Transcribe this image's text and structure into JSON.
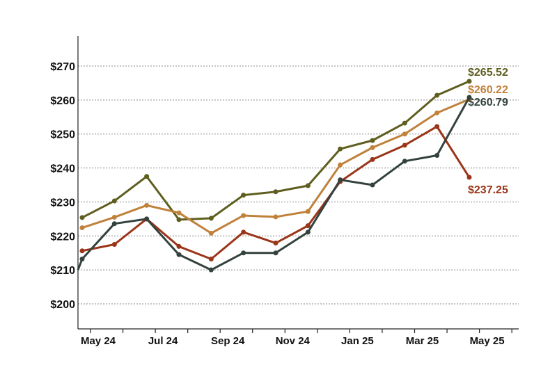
{
  "chart_data": {
    "type": "line",
    "title": "",
    "xlabel": "",
    "ylabel": "",
    "ylim": [
      194,
      276
    ],
    "y_ticks": [
      200,
      210,
      220,
      230,
      240,
      250,
      260,
      270
    ],
    "y_tick_labels": [
      "$200",
      "$210",
      "$220",
      "$230",
      "$240",
      "$250",
      "$260",
      "$270"
    ],
    "x_tick_labels": [
      "May 24",
      "",
      "Jul 24",
      "",
      "Sep 24",
      "",
      "Nov 24",
      "",
      "Jan 25",
      "",
      "Mar 25",
      "",
      "May 25",
      ""
    ],
    "grid": "horizontal-dotted",
    "series": [
      {
        "id": "olive",
        "color": "#5e5e1f",
        "end_label": "$265.52",
        "values": [
          225.4,
          230.3,
          237.5,
          224.8,
          225.2,
          232.0,
          233.0,
          234.8,
          245.6,
          248.1,
          253.2,
          261.4,
          265.52
        ]
      },
      {
        "id": "orange",
        "color": "#c0813a",
        "end_label": "$260.22",
        "values": [
          222.4,
          225.5,
          229.0,
          226.8,
          220.8,
          226.0,
          225.6,
          227.2,
          240.9,
          246.0,
          250.0,
          256.2,
          260.22
        ]
      },
      {
        "id": "red",
        "color": "#9a3518",
        "end_label": "$237.25",
        "values": [
          215.6,
          217.5,
          225.0,
          216.9,
          213.2,
          221.1,
          217.9,
          223.0,
          236.0,
          242.5,
          246.7,
          252.2,
          237.25
        ]
      },
      {
        "id": "dark",
        "color": "#34423e",
        "end_label": "$260.79",
        "values": [
          213.2,
          223.6,
          225.0,
          214.5,
          210.0,
          215.0,
          215.0,
          221.1,
          236.5,
          235.0,
          242.0,
          243.7,
          260.79
        ]
      }
    ]
  }
}
